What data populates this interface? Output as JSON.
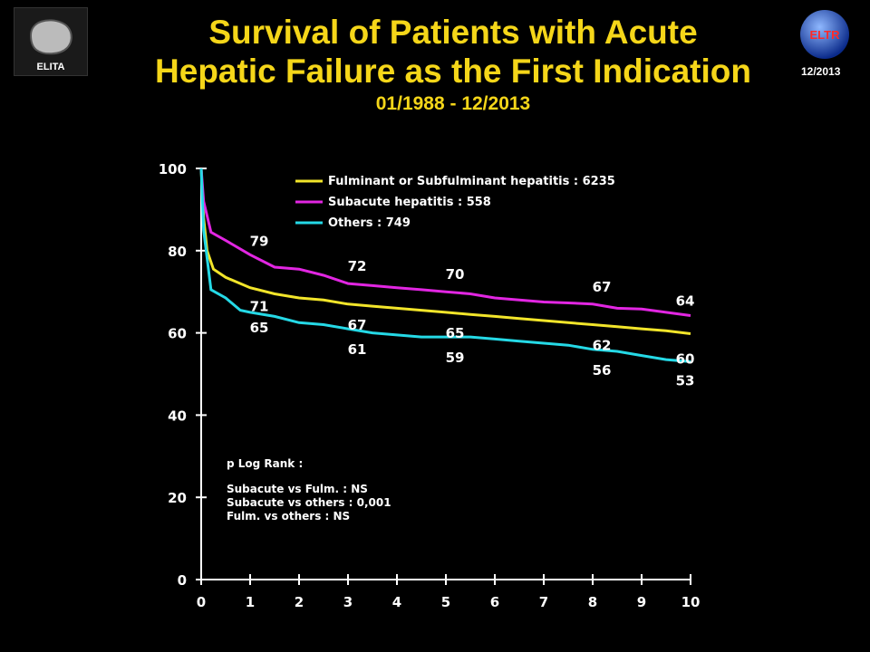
{
  "header": {
    "title_line1": "Survival of Patients with Acute",
    "title_line2": "Hepatic Failure as the First Indication",
    "subtitle": "01/1988 - 12/2013",
    "date_tag": "12/2013",
    "logo_left_text": "ELITA",
    "logo_right_text": "ELTR"
  },
  "chart_data": {
    "type": "line",
    "title": "Survival of Patients with Acute Hepatic Failure as the First Indication",
    "subtitle": "01/1988 - 12/2013",
    "xlabel": "",
    "ylabel": "",
    "xlim": [
      0,
      10
    ],
    "ylim": [
      0,
      100
    ],
    "xticks": [
      0,
      1,
      2,
      3,
      4,
      5,
      6,
      7,
      8,
      9,
      10
    ],
    "yticks": [
      0,
      20,
      40,
      60,
      80,
      100
    ],
    "grid": false,
    "legend_position": "top",
    "series": [
      {
        "name": "Fulminant or Subfulminant hepatitis : 6235",
        "color": "#f2e52a",
        "points": [
          [
            0,
            100
          ],
          [
            0.05,
            88
          ],
          [
            0.12,
            80
          ],
          [
            0.25,
            75.5
          ],
          [
            0.5,
            73.5
          ],
          [
            1,
            71
          ],
          [
            1.5,
            69.5
          ],
          [
            2,
            68.5
          ],
          [
            2.5,
            68
          ],
          [
            3,
            67
          ],
          [
            3.5,
            66.5
          ],
          [
            4,
            66
          ],
          [
            4.5,
            65.5
          ],
          [
            5,
            65
          ],
          [
            5.5,
            64.5
          ],
          [
            6,
            64
          ],
          [
            6.5,
            63.5
          ],
          [
            7,
            63
          ],
          [
            7.5,
            62.5
          ],
          [
            8,
            62
          ],
          [
            8.5,
            61.5
          ],
          [
            9,
            61
          ],
          [
            9.5,
            60.5
          ],
          [
            10,
            59.8
          ]
        ],
        "labels": [
          {
            "x": 1,
            "y": 71,
            "text": "71"
          },
          {
            "x": 3,
            "y": 67,
            "text": "67"
          },
          {
            "x": 5,
            "y": 65,
            "text": "65"
          },
          {
            "x": 8,
            "y": 62,
            "text": "62"
          },
          {
            "x": 10,
            "y": 60,
            "text": "60"
          }
        ]
      },
      {
        "name": "Subacute hepatitis : 558",
        "color": "#e226e2",
        "points": [
          [
            0,
            100
          ],
          [
            0.05,
            92
          ],
          [
            0.2,
            84.5
          ],
          [
            0.5,
            82.5
          ],
          [
            1,
            79
          ],
          [
            1.5,
            76
          ],
          [
            2,
            75.5
          ],
          [
            2.5,
            74
          ],
          [
            3,
            72
          ],
          [
            3.5,
            71.5
          ],
          [
            4,
            71
          ],
          [
            4.5,
            70.5
          ],
          [
            5,
            70
          ],
          [
            5.5,
            69.5
          ],
          [
            6,
            68.5
          ],
          [
            6.5,
            68
          ],
          [
            7,
            67.5
          ],
          [
            7.5,
            67.3
          ],
          [
            8,
            67
          ],
          [
            8.5,
            66
          ],
          [
            9,
            65.8
          ],
          [
            9.5,
            65
          ],
          [
            10,
            64.2
          ]
        ],
        "labels": [
          {
            "x": 1,
            "y": 79,
            "text": "79"
          },
          {
            "x": 3,
            "y": 72,
            "text": "72"
          },
          {
            "x": 5,
            "y": 70,
            "text": "70"
          },
          {
            "x": 8,
            "y": 67,
            "text": "67"
          },
          {
            "x": 10,
            "y": 64,
            "text": "64"
          }
        ]
      },
      {
        "name": "Others : 749",
        "color": "#25d9e6",
        "points": [
          [
            0,
            100
          ],
          [
            0.05,
            85
          ],
          [
            0.2,
            70.5
          ],
          [
            0.5,
            68.5
          ],
          [
            0.8,
            65.5
          ],
          [
            1,
            65
          ],
          [
            1.5,
            64
          ],
          [
            2,
            62.5
          ],
          [
            2.5,
            62
          ],
          [
            3,
            61
          ],
          [
            3.5,
            60
          ],
          [
            4,
            59.5
          ],
          [
            4.5,
            59
          ],
          [
            5,
            59
          ],
          [
            5.5,
            59
          ],
          [
            6,
            58.5
          ],
          [
            6.5,
            58
          ],
          [
            7,
            57.5
          ],
          [
            7.5,
            57
          ],
          [
            8,
            56
          ],
          [
            8.5,
            55.5
          ],
          [
            9,
            54.5
          ],
          [
            9.5,
            53.5
          ],
          [
            10,
            53
          ]
        ],
        "labels": [
          {
            "x": 1,
            "y": 65,
            "text": "65"
          },
          {
            "x": 3,
            "y": 61,
            "text": "61"
          },
          {
            "x": 5,
            "y": 59,
            "text": "59"
          },
          {
            "x": 8,
            "y": 56,
            "text": "56"
          },
          {
            "x": 10,
            "y": 53,
            "text": "53"
          }
        ]
      }
    ],
    "annotations": {
      "title": "p Log Rank :",
      "lines": [
        "Subacute vs Fulm. : NS",
        "Subacute vs others : 0,001",
        "Fulm. vs others : NS"
      ]
    }
  }
}
